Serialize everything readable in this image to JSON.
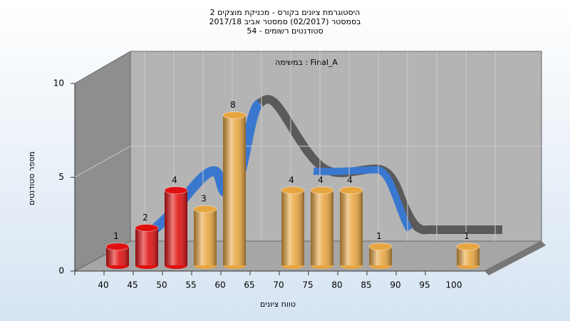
{
  "chart_data": {
    "type": "bar",
    "title": [
      "היסטוגרמת ציונים בקורס - מכניקת מוצקים 2",
      "בסמסטר  (02/2017)  סמסטר אביב 2017/18",
      "סטודנטים רשומים - 54"
    ],
    "annotation": "במשימה : Final_A",
    "x_label": "טווח ציונים",
    "y_label": "מספר סטודנטים",
    "categories": [
      "40",
      "45",
      "50",
      "55",
      "60",
      "65",
      "70",
      "75",
      "80",
      "85",
      "90",
      "95",
      "100"
    ],
    "values": [
      1,
      2,
      4,
      3,
      8,
      0,
      4,
      4,
      4,
      1,
      0,
      0,
      1
    ],
    "colors": [
      "#e01010",
      "#e01010",
      "#e01010",
      "#e8a640",
      "#e8a640",
      "#e8a640",
      "#e8a640",
      "#e8a640",
      "#e8a640",
      "#e8a640",
      "#e8a640",
      "#e8a640",
      "#e8a640"
    ],
    "ylim": [
      0,
      10
    ],
    "yticks": [
      0,
      5,
      10
    ],
    "grid": true
  }
}
